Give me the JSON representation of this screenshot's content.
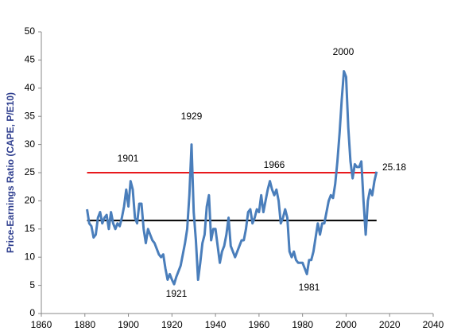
{
  "chart_data": {
    "type": "line",
    "y_label": "Price-Earnings Ratio (CAPE, P/E10)",
    "x": [
      1881,
      1882,
      1883,
      1884,
      1885,
      1886,
      1887,
      1888,
      1889,
      1890,
      1891,
      1892,
      1893,
      1894,
      1895,
      1896,
      1897,
      1898,
      1899,
      1900,
      1901,
      1902,
      1903,
      1904,
      1905,
      1906,
      1907,
      1908,
      1909,
      1910,
      1911,
      1912,
      1913,
      1914,
      1915,
      1916,
      1917,
      1918,
      1919,
      1920,
      1921,
      1922,
      1923,
      1924,
      1925,
      1926,
      1927,
      1928,
      1929,
      1930,
      1931,
      1932,
      1933,
      1934,
      1935,
      1936,
      1937,
      1938,
      1939,
      1940,
      1941,
      1942,
      1943,
      1944,
      1945,
      1946,
      1947,
      1948,
      1949,
      1950,
      1951,
      1952,
      1953,
      1954,
      1955,
      1956,
      1957,
      1958,
      1959,
      1960,
      1961,
      1962,
      1963,
      1964,
      1965,
      1966,
      1967,
      1968,
      1969,
      1970,
      1971,
      1972,
      1973,
      1974,
      1975,
      1976,
      1977,
      1978,
      1979,
      1980,
      1981,
      1982,
      1983,
      1984,
      1985,
      1986,
      1987,
      1988,
      1989,
      1990,
      1991,
      1992,
      1993,
      1994,
      1995,
      1996,
      1997,
      1998,
      1999,
      2000,
      2001,
      2002,
      2003,
      2004,
      2005,
      2006,
      2007,
      2008,
      2009,
      2010,
      2011,
      2012,
      2013,
      2014
    ],
    "series": [
      {
        "name": "CAPE",
        "color": "#4a7ebb",
        "values": [
          18.5,
          16,
          15.5,
          13.5,
          14,
          17,
          18,
          16,
          17,
          17.5,
          15,
          18,
          16,
          15,
          16,
          15.5,
          17,
          19,
          22,
          19,
          23.5,
          22,
          17,
          16,
          19.5,
          19.5,
          15,
          12.5,
          15,
          14,
          13,
          12.5,
          11.5,
          10.5,
          10,
          10.5,
          8,
          6,
          7,
          6,
          5.2,
          6.5,
          7.5,
          8.5,
          10.5,
          12.5,
          15,
          21,
          30,
          18,
          13,
          6,
          9,
          12.5,
          14,
          19,
          21,
          13,
          15,
          15,
          12,
          9,
          11,
          12,
          14,
          17,
          12,
          11,
          10,
          11,
          12,
          13,
          13,
          15,
          18,
          18.5,
          16,
          17,
          18.5,
          18,
          21,
          18,
          20,
          22,
          23.5,
          22,
          21,
          22,
          20,
          16,
          17,
          18.5,
          17,
          11,
          10,
          11,
          9.5,
          9,
          9,
          9,
          8,
          7,
          9.5,
          9.5,
          11,
          13.5,
          16,
          14,
          16,
          16,
          18,
          20,
          21,
          20.5,
          23,
          27,
          32,
          38,
          43,
          42,
          33,
          27,
          24,
          26.5,
          26,
          26,
          27,
          20,
          14,
          20,
          22,
          21,
          23.5,
          25.18
        ]
      }
    ],
    "reference_lines": [
      {
        "value": 25,
        "color": "#e8191c"
      },
      {
        "value": 16.5,
        "color": "#000000"
      }
    ],
    "annotations": [
      "1901",
      "1929",
      "1966",
      "2000",
      "1921",
      "1981",
      "25.18"
    ],
    "xlim": [
      1860,
      2040
    ],
    "xticks": [
      1860,
      1880,
      1900,
      1920,
      1940,
      1960,
      1980,
      2000,
      2020,
      2040
    ],
    "ylim": [
      0,
      50
    ],
    "yticks": [
      0,
      5,
      10,
      15,
      20,
      25,
      30,
      35,
      40,
      45,
      50
    ],
    "grid": false
  }
}
